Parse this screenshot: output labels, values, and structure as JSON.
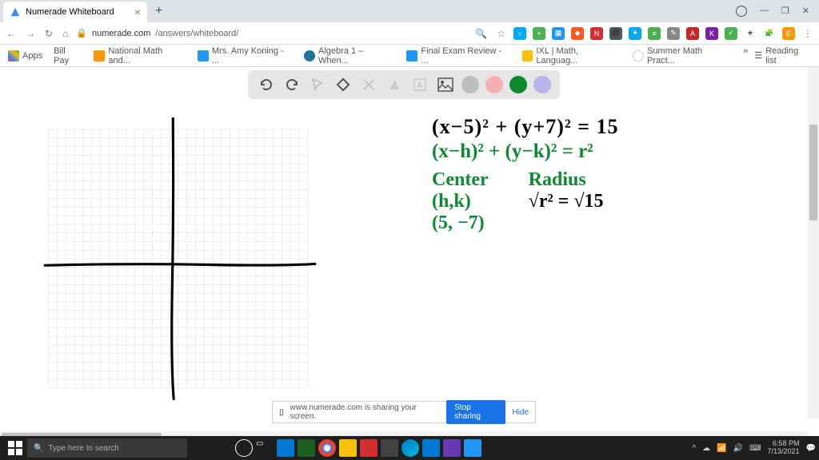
{
  "window": {
    "tab_title": "Numerade Whiteboard",
    "url_host": "numerade.com",
    "url_path": "/answers/whiteboard/"
  },
  "bookmarks": {
    "apps": "Apps",
    "item1": "Bill Pay",
    "item2": "National Math and...",
    "item3": "Mrs. Amy Koning - ...",
    "item4": "Algebra 1 – When...",
    "item5": "Final Exam Review - ...",
    "item6": "IXL | Math, Languag...",
    "item7": "Summer Math Pract...",
    "reading": "Reading list"
  },
  "toolbar_colors": {
    "c1": "#bdbdbd",
    "c2": "#f5b1b1",
    "c3": "#0d8a2f",
    "c4": "#b8b3e8"
  },
  "handwriting": {
    "line1": "(x−5)² + (y+7)² = 15",
    "line2": "(x−h)² + (y−k)² = r²",
    "center_label": "Center",
    "radius_label": "Radius",
    "hk": "(h,k)",
    "r_eq": "√r² = √15",
    "point": "(5, −7)"
  },
  "share": {
    "text": "www.numerade.com is sharing your screen.",
    "stop": "Stop sharing",
    "hide": "Hide"
  },
  "taskbar": {
    "search": "Type here to search",
    "time": "6:58 PM",
    "date": "7/13/2021"
  },
  "grid": {
    "cols": 30,
    "rows": 30,
    "cell": 12,
    "grid_color": "#b0b0b0",
    "axis_color": "#000000"
  }
}
